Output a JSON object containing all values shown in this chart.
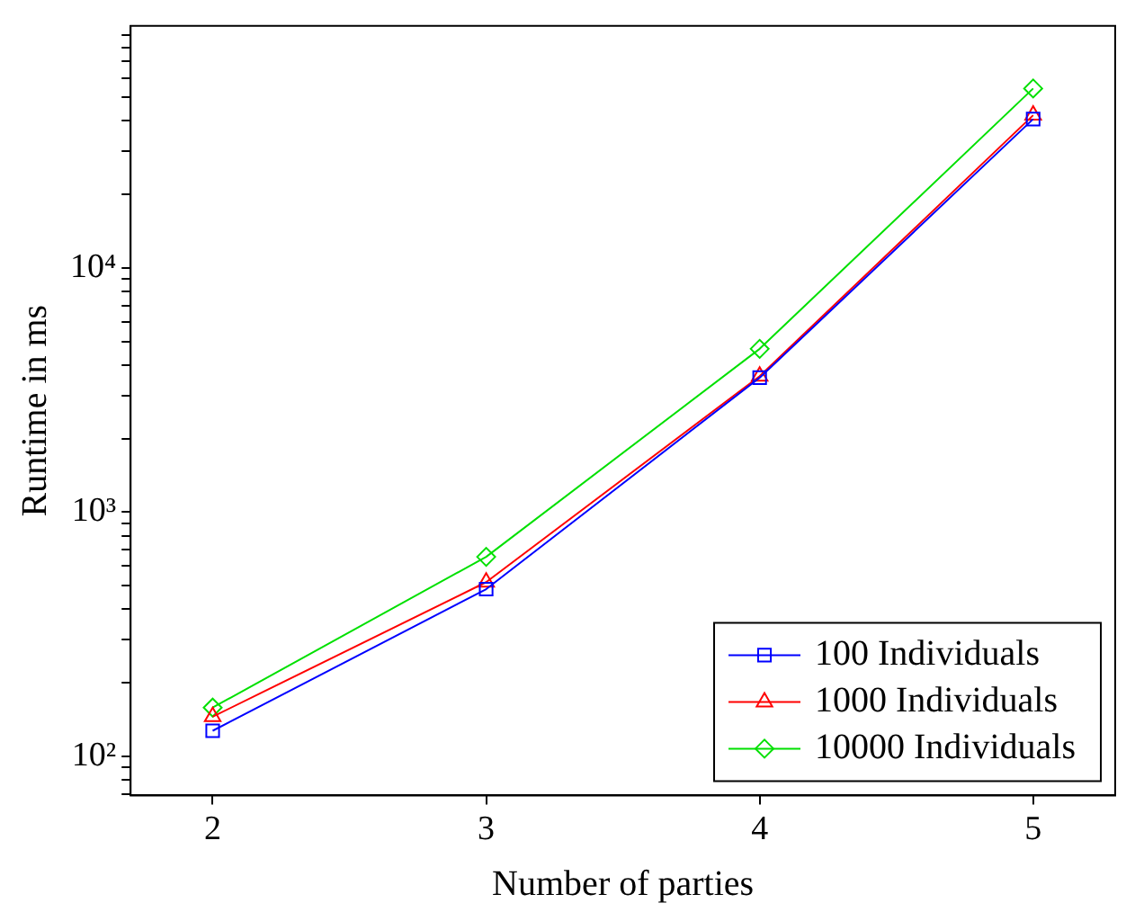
{
  "chart_data": {
    "type": "line",
    "xlabel": "Number of parties",
    "ylabel": "Runtime in ms",
    "x": [
      2,
      3,
      4,
      5
    ],
    "series": [
      {
        "name": "100 Individuals",
        "color": "#0000ff",
        "marker": "square",
        "values": [
          127,
          483,
          3550,
          40700
        ]
      },
      {
        "name": "1000 Individuals",
        "color": "#ff0000",
        "marker": "triangle",
        "values": [
          145,
          516,
          3600,
          42200
        ]
      },
      {
        "name": "10000 Individuals",
        "color": "#00e000",
        "marker": "diamond",
        "values": [
          158,
          655,
          4660,
          54300
        ]
      }
    ],
    "xlim": [
      1.7,
      5.3
    ],
    "xticks": [
      2,
      3,
      4,
      5
    ],
    "log": "y",
    "ylim": [
      69,
      98000
    ],
    "yticks": [
      {
        "value": 70,
        "label": null
      },
      {
        "value": 80,
        "label": null
      },
      {
        "value": 90,
        "label": null
      },
      {
        "value": 100,
        "label": "10²"
      },
      {
        "value": 200,
        "label": null
      },
      {
        "value": 300,
        "label": null
      },
      {
        "value": 400,
        "label": null
      },
      {
        "value": 500,
        "label": null
      },
      {
        "value": 600,
        "label": null
      },
      {
        "value": 700,
        "label": null
      },
      {
        "value": 800,
        "label": null
      },
      {
        "value": 900,
        "label": null
      },
      {
        "value": 1000,
        "label": "10³"
      },
      {
        "value": 2000,
        "label": null
      },
      {
        "value": 3000,
        "label": null
      },
      {
        "value": 4000,
        "label": null
      },
      {
        "value": 5000,
        "label": null
      },
      {
        "value": 6000,
        "label": null
      },
      {
        "value": 7000,
        "label": null
      },
      {
        "value": 8000,
        "label": null
      },
      {
        "value": 9000,
        "label": null
      },
      {
        "value": 10000,
        "label": "10⁴"
      },
      {
        "value": 20000,
        "label": null
      },
      {
        "value": 30000,
        "label": null
      },
      {
        "value": 40000,
        "label": null
      },
      {
        "value": 50000,
        "label": null
      },
      {
        "value": 60000,
        "label": null
      },
      {
        "value": 70000,
        "label": null
      },
      {
        "value": 80000,
        "label": null
      },
      {
        "value": 90000,
        "label": null
      }
    ],
    "grid": false,
    "legend": "bottom right",
    "line_style": "solid"
  }
}
